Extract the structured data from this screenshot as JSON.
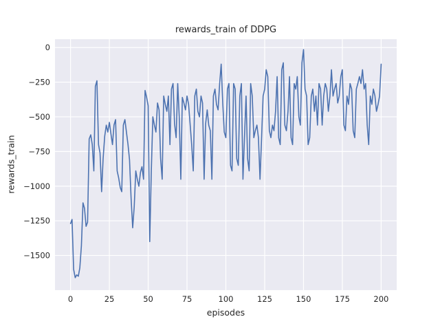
{
  "figure": {
    "title": "rewards_train of DDPG",
    "xlabel": "episodes",
    "ylabel": "rewards_train"
  },
  "chart_data": {
    "type": "line",
    "title": "rewards_train of DDPG",
    "xlabel": "episodes",
    "ylabel": "rewards_train",
    "xlim": [
      -10,
      210
    ],
    "ylim": [
      -1750,
      60
    ],
    "xticks": [
      0,
      25,
      50,
      75,
      100,
      125,
      150,
      175,
      200
    ],
    "yticks": [
      0,
      -250,
      -500,
      -750,
      -1000,
      -1250,
      -1500
    ],
    "grid": true,
    "legend": "none",
    "plot_bg": "#eaeaf2",
    "grid_color": "#ffffff",
    "text_color": "#262626",
    "x_start": 0,
    "x_step": 1,
    "series": [
      {
        "name": "rewards_train",
        "color": "#4c72b0",
        "y": [
          -1270,
          -1240,
          -1600,
          -1660,
          -1640,
          -1650,
          -1590,
          -1430,
          -1120,
          -1160,
          -1290,
          -1260,
          -660,
          -630,
          -700,
          -890,
          -280,
          -240,
          -700,
          -760,
          -1040,
          -800,
          -640,
          -560,
          -610,
          -540,
          -620,
          -700,
          -560,
          -520,
          -890,
          -940,
          -1010,
          -1040,
          -560,
          -520,
          -610,
          -700,
          -810,
          -1090,
          -1300,
          -1150,
          -890,
          -950,
          -1000,
          -900,
          -860,
          -950,
          -310,
          -360,
          -420,
          -1400,
          -890,
          -500,
          -560,
          -610,
          -400,
          -450,
          -800,
          -950,
          -350,
          -410,
          -460,
          -350,
          -700,
          -300,
          -260,
          -550,
          -650,
          -260,
          -500,
          -950,
          -360,
          -400,
          -450,
          -350,
          -410,
          -550,
          -700,
          -890,
          -350,
          -300,
          -460,
          -500,
          -350,
          -400,
          -950,
          -550,
          -450,
          -560,
          -600,
          -950,
          -350,
          -300,
          -410,
          -450,
          -260,
          -120,
          -400,
          -610,
          -650,
          -300,
          -260,
          -850,
          -890,
          -260,
          -300,
          -800,
          -850,
          -350,
          -260,
          -950,
          -650,
          -350,
          -800,
          -890,
          -260,
          -350,
          -650,
          -600,
          -560,
          -650,
          -950,
          -650,
          -350,
          -300,
          -160,
          -210,
          -600,
          -650,
          -560,
          -600,
          -460,
          -210,
          -650,
          -700,
          -160,
          -110,
          -560,
          -600,
          -460,
          -210,
          -650,
          -700,
          -260,
          -300,
          -210,
          -500,
          -560,
          -110,
          -15,
          -300,
          -350,
          -700,
          -650,
          -350,
          -300,
          -460,
          -350,
          -560,
          -260,
          -300,
          -560,
          -350,
          -260,
          -300,
          -460,
          -350,
          -160,
          -350,
          -300,
          -260,
          -400,
          -350,
          -210,
          -160,
          -560,
          -600,
          -350,
          -410,
          -260,
          -300,
          -600,
          -650,
          -300,
          -260,
          -210,
          -260,
          -160,
          -300,
          -260,
          -560,
          -700,
          -350,
          -410,
          -300,
          -350,
          -460,
          -410,
          -350,
          -120
        ]
      }
    ]
  }
}
